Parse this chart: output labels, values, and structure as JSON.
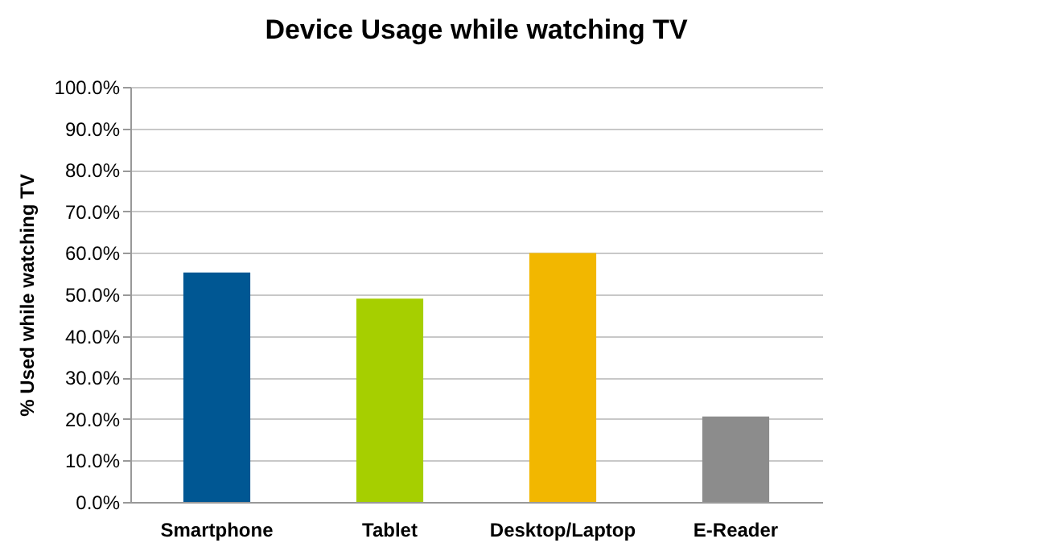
{
  "chart_data": {
    "type": "bar",
    "title": "Device Usage while watching TV",
    "ylabel": "% Used while watching TV",
    "categories": [
      "Smartphone",
      "Tablet",
      "Desktop/Laptop",
      "E-Reader"
    ],
    "values": [
      55.3,
      49,
      60,
      20.6
    ],
    "colors": [
      "#005793",
      "#a6cf00",
      "#f2b700",
      "#8c8c8c"
    ],
    "ylim": [
      0,
      100
    ],
    "yticks": [
      {
        "value": 0,
        "label": "0.0%"
      },
      {
        "value": 10,
        "label": "10.0%"
      },
      {
        "value": 20,
        "label": "20.0%"
      },
      {
        "value": 30,
        "label": "30.0%"
      },
      {
        "value": 40,
        "label": "40.0%"
      },
      {
        "value": 50,
        "label": "50.0%"
      },
      {
        "value": 60,
        "label": "60.0%"
      },
      {
        "value": 70,
        "label": "70.0%"
      },
      {
        "value": 80,
        "label": "80.0%"
      },
      {
        "value": 90,
        "label": "90.0%"
      },
      {
        "value": 100,
        "label": "100.0%"
      }
    ],
    "grid": "y",
    "legend": false
  }
}
